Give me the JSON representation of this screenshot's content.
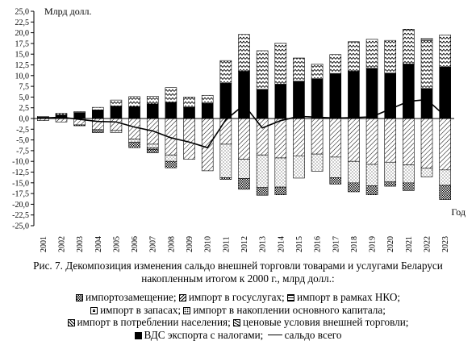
{
  "figure": {
    "caption_line1": "Рис. 7. Декомпозиция изменения сальдо внешней торговли товарами и услугами Беларуси",
    "caption_line2": "накопленным итогом к 2000 г., млрд долл.:"
  },
  "chart_data": {
    "type": "bar",
    "stacked": true,
    "ylabel": "Млрд долл.",
    "xlabel": "Год",
    "ylim": [
      -25,
      25
    ],
    "ytick_step": 2.5,
    "ytick_labels": [
      "25,0",
      "22,5",
      "20,0",
      "17,5",
      "15,0",
      "12,5",
      "10,0",
      "7,5",
      "5,0",
      "2,5",
      "0,0",
      "-2,5",
      "-5,0",
      "-7,5",
      "-10,0",
      "-12,5",
      "-15,0",
      "-17,5",
      "-20,0",
      "-22,5",
      "-25,0"
    ],
    "grid": false,
    "legend_position": "bottom",
    "categories": [
      "2001",
      "2002",
      "2003",
      "2004",
      "2005",
      "2006",
      "2007",
      "2008",
      "2009",
      "2010",
      "2011",
      "2012",
      "2013",
      "2014",
      "2015",
      "2016",
      "2017",
      "2018",
      "2019",
      "2020",
      "2021",
      "2022",
      "2023"
    ],
    "series": [
      {
        "name": "ВДС экспорта с налогами",
        "pattern": "solid",
        "values": [
          0.3,
          0.8,
          1.4,
          2.0,
          2.9,
          2.8,
          3.4,
          3.8,
          2.6,
          3.5,
          8.2,
          11.0,
          6.8,
          8.0,
          8.7,
          9.2,
          10.5,
          11.0,
          11.7,
          10.6,
          12.7,
          7.0,
          12.0
        ]
      },
      {
        "name": "ценовые условия внешней торговли",
        "pattern": "waves",
        "values": [
          0.2,
          0.4,
          0.2,
          0.6,
          1.4,
          2.3,
          1.8,
          3.4,
          2.4,
          1.9,
          5.3,
          8.6,
          9.0,
          9.6,
          5.4,
          3.5,
          4.4,
          6.9,
          6.8,
          7.6,
          8.1,
          11.2,
          7.5
        ]
      },
      {
        "name": "импорт в рамках НКО",
        "pattern": "hlines",
        "values": [
          0.0,
          0.0,
          0.0,
          0.0,
          0.0,
          0.0,
          0.0,
          0.0,
          0.0,
          0.0,
          0.0,
          0.0,
          0.0,
          0.0,
          0.0,
          0.0,
          0.0,
          0.0,
          0.0,
          0.0,
          0.0,
          0.5,
          0.0
        ]
      },
      {
        "name": "импорт в потреблении населения",
        "pattern": "diag",
        "values": [
          -0.5,
          -0.8,
          -1.5,
          -2.6,
          -2.8,
          -4.8,
          -6.0,
          -8.5,
          -9.5,
          -12.2,
          -6.0,
          -9.5,
          -8.5,
          -9.2,
          -8.7,
          -8.3,
          -9.0,
          -10.0,
          -10.7,
          -10.2,
          -10.8,
          -11.6,
          -12.0
        ]
      },
      {
        "name": "импорт в накоплении основного капитала",
        "pattern": "dots",
        "values": [
          0.0,
          0.0,
          0.0,
          0.0,
          -0.5,
          -0.7,
          -0.9,
          -1.5,
          0.0,
          0.0,
          -7.8,
          -4.5,
          -7.6,
          -6.8,
          -5.2,
          -4.0,
          -4.8,
          -5.0,
          -5.0,
          -4.6,
          -4.2,
          -2.0,
          -3.6
        ]
      },
      {
        "name": "импорт в запасах",
        "pattern": "square",
        "values": [
          0.0,
          0.0,
          0.0,
          0.0,
          0.0,
          0.0,
          -0.3,
          0.0,
          0.0,
          0.0,
          0.0,
          0.0,
          0.0,
          0.0,
          0.0,
          0.0,
          0.0,
          0.0,
          0.0,
          0.0,
          0.0,
          0.0,
          0.0
        ]
      },
      {
        "name": "импортозамещение",
        "pattern": "checker",
        "values": [
          0.0,
          0.0,
          -0.2,
          -0.7,
          0.0,
          -1.3,
          -0.8,
          -1.5,
          0.0,
          0.0,
          -0.4,
          -2.5,
          -1.8,
          -1.8,
          0.0,
          0.0,
          -1.5,
          -2.1,
          -2.1,
          -1.0,
          -1.8,
          0.0,
          -3.3
        ]
      },
      {
        "name": "импорт в госуслугах",
        "pattern": "slash",
        "values": [
          0.0,
          0.0,
          0.0,
          0.0,
          0.0,
          0.0,
          0.0,
          0.0,
          0.0,
          0.0,
          0.0,
          0.0,
          0.0,
          0.0,
          0.0,
          0.0,
          0.0,
          0.0,
          0.0,
          0.0,
          0.0,
          0.0,
          0.0
        ]
      }
    ],
    "line_series": {
      "name": "сальдо всего",
      "values": [
        0.1,
        0.3,
        -0.2,
        -0.7,
        -0.8,
        -2.0,
        -2.9,
        -4.5,
        -5.5,
        -6.8,
        -0.3,
        3.2,
        -2.2,
        -0.5,
        0.5,
        0.3,
        0.1,
        0.2,
        0.4,
        2.2,
        4.0,
        4.4,
        0.6
      ]
    }
  },
  "legend": {
    "rows": [
      [
        {
          "label": "импортозамещение;",
          "pattern": "checker"
        },
        {
          "label": "импорт в госуслугах;",
          "pattern": "slash"
        },
        {
          "label": "импорт в рамках НКО;",
          "pattern": "hlines"
        }
      ],
      [
        {
          "label": "импорт в запасах;",
          "pattern": "square"
        },
        {
          "label": "импорт в накоплении основного капитала;",
          "pattern": "dots"
        }
      ],
      [
        {
          "label": "импорт в потреблении населения;",
          "pattern": "diag"
        },
        {
          "label": "ценовые условия внешней торговли;",
          "pattern": "waves"
        }
      ],
      [
        {
          "label": "ВДС экспорта с налогами;",
          "pattern": "solid"
        },
        {
          "label": "сальдо всего",
          "pattern": "line"
        }
      ]
    ]
  }
}
